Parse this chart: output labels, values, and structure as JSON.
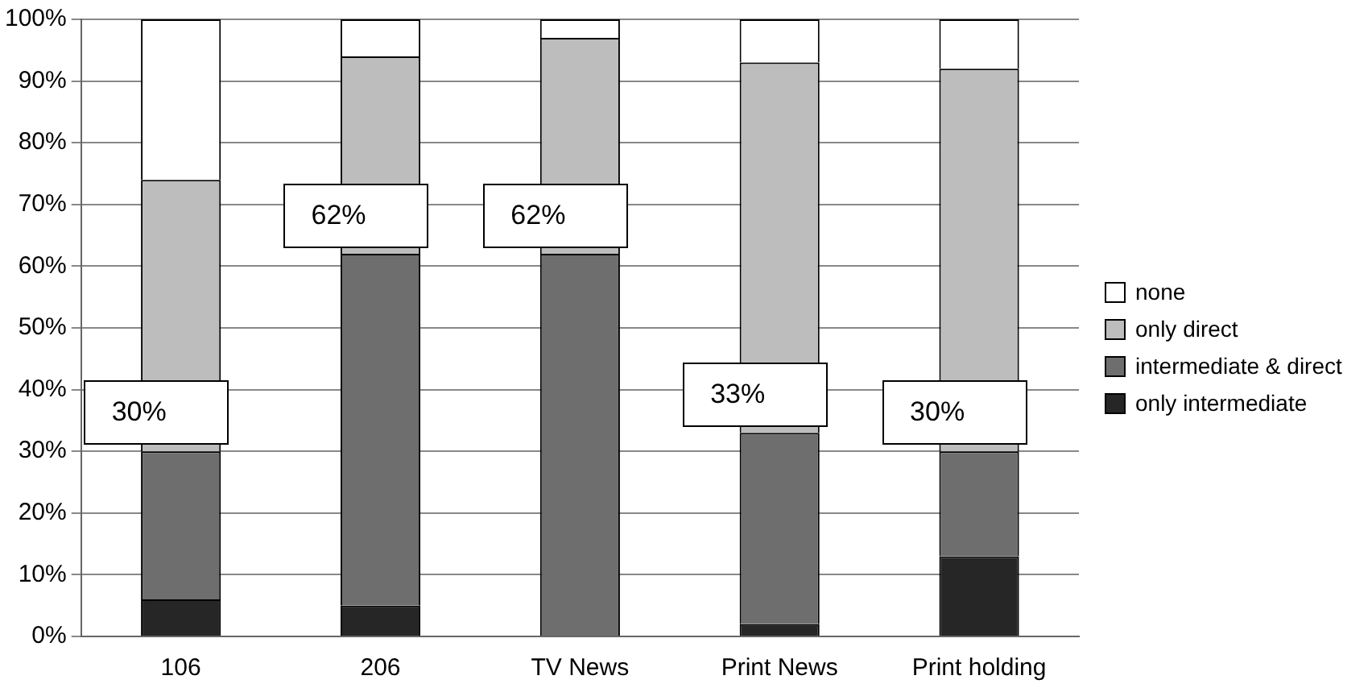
{
  "chart_data": {
    "type": "bar",
    "stacked": true,
    "categories": [
      "106",
      "206",
      "TV News",
      "Print News",
      "Print holding"
    ],
    "series": [
      {
        "name": "only intermediate",
        "color": "#262626",
        "values": [
          6,
          5,
          0,
          2,
          13
        ]
      },
      {
        "name": "intermediate & direct",
        "color": "#6e6e6e",
        "values": [
          24,
          57,
          62,
          31,
          17
        ]
      },
      {
        "name": "only direct",
        "color": "#bdbdbd",
        "values": [
          44,
          32,
          35,
          60,
          62
        ]
      },
      {
        "name": "none",
        "color": "#ffffff",
        "values": [
          26,
          6,
          3,
          7,
          8
        ]
      }
    ],
    "ylim": [
      0,
      100
    ],
    "yticks": [
      {
        "value": 0,
        "label": "0%"
      },
      {
        "value": 10,
        "label": "10%"
      },
      {
        "value": 20,
        "label": "20%"
      },
      {
        "value": 30,
        "label": "30%"
      },
      {
        "value": 40,
        "label": "40%"
      },
      {
        "value": 50,
        "label": "50%"
      },
      {
        "value": 60,
        "label": "60%"
      },
      {
        "value": 70,
        "label": "70%"
      },
      {
        "value": 80,
        "label": "80%"
      },
      {
        "value": 90,
        "label": "90%"
      },
      {
        "value": 100,
        "label": "100%"
      }
    ],
    "annotations": [
      {
        "text": "30%",
        "x": "106",
        "y": 30
      },
      {
        "text": "62%",
        "x": "206",
        "y": 62
      },
      {
        "text": "62%",
        "x": "TV News",
        "y": 62
      },
      {
        "text": "33%",
        "x": "Print News",
        "y": 33
      },
      {
        "text": "30%",
        "x": "Print holding",
        "y": 30
      }
    ],
    "grid": "y",
    "legend": "right"
  }
}
